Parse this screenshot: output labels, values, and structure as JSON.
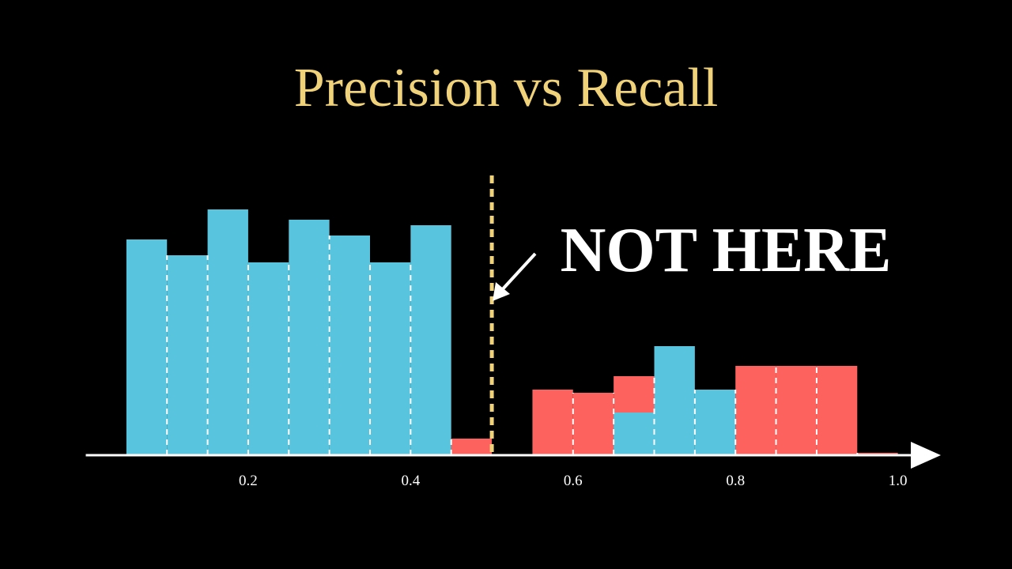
{
  "chart_data": {
    "type": "histogram",
    "title": "Precision vs Recall",
    "annotation": "NOT HERE",
    "bins": [
      0.05,
      0.1,
      0.15,
      0.2,
      0.25,
      0.3,
      0.35,
      0.4,
      0.45,
      0.5,
      0.55,
      0.6,
      0.65,
      0.7,
      0.75,
      0.8,
      0.85,
      0.9,
      0.95,
      1.0
    ],
    "series": [
      {
        "color": "#fd625e",
        "values": [
          0,
          0,
          0,
          0,
          0,
          0,
          0,
          0,
          21,
          0,
          83,
          79,
          100,
          0,
          0,
          113,
          113,
          113,
          3
        ]
      },
      {
        "color": "#58c4dd",
        "values": [
          273,
          253,
          311,
          244,
          298,
          278,
          244,
          291,
          0,
          0,
          0,
          0,
          54,
          138,
          83,
          0,
          0,
          0,
          0
        ]
      }
    ],
    "threshold": 0.5,
    "threshold_color": "#f0d27a",
    "xlim": [
      0,
      1.05
    ],
    "xticks": [
      0.2,
      0.4,
      0.6,
      0.8,
      {
        "value": 1.0,
        "label": "1.0"
      }
    ],
    "ylim": [
      0,
      320
    ],
    "grid": false
  }
}
